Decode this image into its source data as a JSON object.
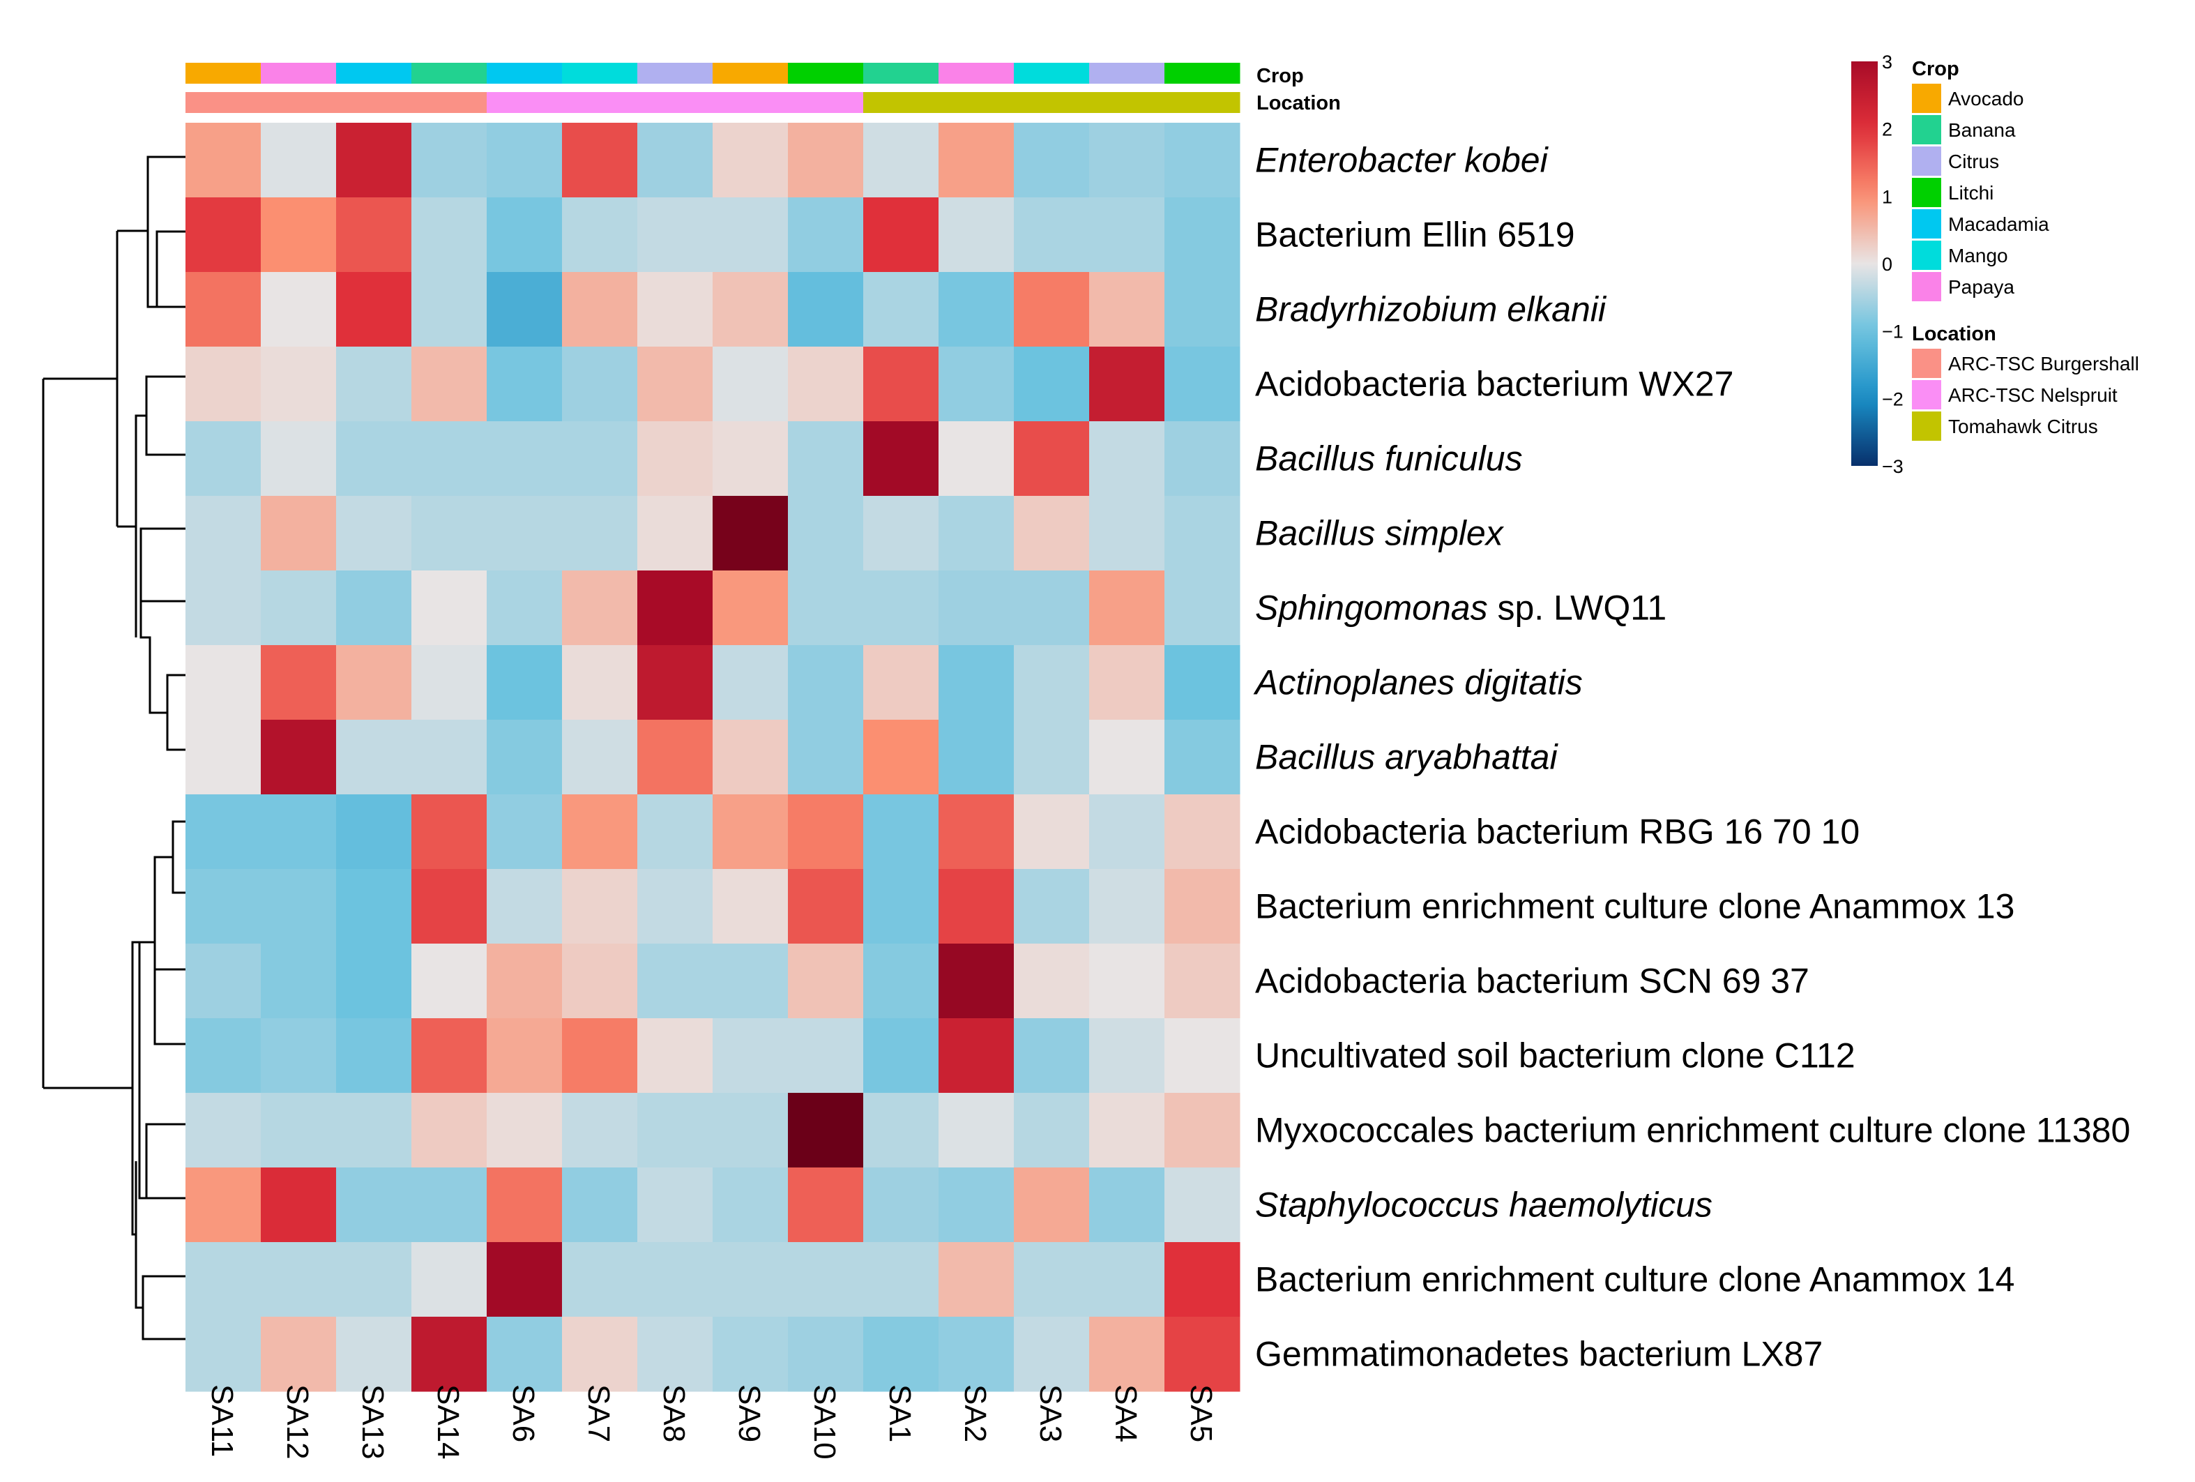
{
  "chart_data": {
    "type": "heatmap",
    "columns": [
      "SA11",
      "SA12",
      "SA13",
      "SA14",
      "SA6",
      "SA7",
      "SA8",
      "SA9",
      "SA10",
      "SA1",
      "SA2",
      "SA3",
      "SA4",
      "SA5"
    ],
    "rows": [
      {
        "name": "Enterobacter kobei",
        "italic": true
      },
      {
        "name": "Bacterium Ellin 6519",
        "italic": false
      },
      {
        "name": "Bradyrhizobium elkanii",
        "italic": true
      },
      {
        "name": "Acidobacteria bacterium WX27",
        "italic": false
      },
      {
        "name": "Bacillus funiculus",
        "italic": true
      },
      {
        "name": "Bacillus simplex",
        "italic": true
      },
      {
        "name": "Sphingomonas",
        "suffix": " sp. LWQ11",
        "italic": true
      },
      {
        "name": "Actinoplanes digitatis",
        "italic": true
      },
      {
        "name": "Bacillus aryabhattai",
        "italic": true
      },
      {
        "name": "Acidobacteria bacterium RBG 16 70 10",
        "italic": false
      },
      {
        "name": "Bacterium enrichment culture clone Anammox 13",
        "italic": false
      },
      {
        "name": "Acidobacteria bacterium SCN 69 37",
        "italic": false
      },
      {
        "name": "Uncultivated soil bacterium clone C112",
        "italic": false
      },
      {
        "name": "Myxococcales bacterium enrichment culture clone 11380",
        "italic": false
      },
      {
        "name": "Staphylococcus haemolyticus",
        "italic": true
      },
      {
        "name": "Bacterium enrichment culture clone Anammox 14",
        "italic": false
      },
      {
        "name": "Gemmatimonadetes bacterium LX87",
        "italic": false
      }
    ],
    "values": [
      [
        0.8,
        -0.1,
        2.4,
        -0.6,
        -0.7,
        1.7,
        -0.6,
        0.2,
        0.6,
        -0.2,
        0.8,
        -0.7,
        -0.6,
        -0.7
      ],
      [
        1.9,
        1.0,
        1.6,
        -0.4,
        -0.9,
        -0.4,
        -0.3,
        -0.3,
        -0.7,
        2.0,
        -0.2,
        -0.5,
        -0.5,
        -0.8
      ],
      [
        1.3,
        0.0,
        2.0,
        -0.4,
        -1.4,
        0.6,
        0.1,
        0.4,
        -1.1,
        -0.5,
        -0.9,
        1.2,
        0.5,
        -0.8
      ],
      [
        0.2,
        0.1,
        -0.4,
        0.5,
        -0.9,
        -0.6,
        0.5,
        -0.1,
        0.2,
        1.7,
        -0.7,
        -1.0,
        2.5,
        -0.9
      ],
      [
        -0.5,
        -0.1,
        -0.5,
        -0.5,
        -0.5,
        -0.5,
        0.2,
        0.1,
        -0.5,
        3.1,
        0.0,
        1.7,
        -0.3,
        -0.6
      ],
      [
        -0.3,
        0.6,
        -0.3,
        -0.4,
        -0.4,
        -0.4,
        0.1,
        3.8,
        -0.5,
        -0.3,
        -0.5,
        0.3,
        -0.3,
        -0.5
      ],
      [
        -0.3,
        -0.4,
        -0.7,
        0.0,
        -0.5,
        0.5,
        3.0,
        0.9,
        -0.5,
        -0.5,
        -0.6,
        -0.6,
        0.8,
        -0.5
      ],
      [
        0.0,
        1.5,
        0.6,
        -0.1,
        -1.0,
        0.1,
        2.6,
        -0.3,
        -0.7,
        0.3,
        -0.9,
        -0.4,
        0.3,
        -1.0
      ],
      [
        0.0,
        2.8,
        -0.3,
        -0.3,
        -0.8,
        -0.2,
        1.3,
        0.3,
        -0.7,
        1.0,
        -0.9,
        -0.4,
        0.0,
        -0.8
      ],
      [
        -0.9,
        -0.9,
        -1.1,
        1.6,
        -0.7,
        0.9,
        -0.4,
        0.8,
        1.2,
        -0.9,
        1.5,
        0.1,
        -0.3,
        0.3
      ],
      [
        -0.8,
        -0.8,
        -1.0,
        1.8,
        -0.3,
        0.2,
        -0.3,
        0.1,
        1.6,
        -0.9,
        1.8,
        -0.5,
        -0.2,
        0.5
      ],
      [
        -0.6,
        -0.8,
        -1.0,
        0.0,
        0.6,
        0.3,
        -0.5,
        -0.5,
        0.4,
        -0.8,
        3.3,
        0.1,
        0.0,
        0.3
      ],
      [
        -0.8,
        -0.7,
        -0.9,
        1.5,
        0.7,
        1.2,
        0.1,
        -0.3,
        -0.3,
        -0.9,
        2.4,
        -0.7,
        -0.2,
        0.0
      ],
      [
        -0.3,
        -0.4,
        -0.4,
        0.3,
        0.1,
        -0.3,
        -0.4,
        -0.4,
        4.0,
        -0.4,
        -0.1,
        -0.4,
        0.1,
        0.4
      ],
      [
        0.9,
        2.1,
        -0.7,
        -0.7,
        1.3,
        -0.7,
        -0.3,
        -0.5,
        1.5,
        -0.6,
        -0.7,
        0.7,
        -0.7,
        -0.2
      ],
      [
        -0.4,
        -0.4,
        -0.4,
        -0.1,
        3.1,
        -0.4,
        -0.4,
        -0.4,
        -0.4,
        -0.4,
        0.5,
        -0.4,
        -0.4,
        2.0
      ],
      [
        -0.4,
        0.5,
        -0.2,
        2.6,
        -0.7,
        0.2,
        -0.3,
        -0.5,
        -0.6,
        -0.8,
        -0.7,
        -0.3,
        0.6,
        1.8
      ]
    ],
    "crop_annotation": [
      "Avocado",
      "Papaya",
      "Macadamia",
      "Banana",
      "Macadamia",
      "Mango",
      "Citrus",
      "Avocado",
      "Litchi",
      "Banana",
      "Papaya",
      "Mango",
      "Citrus",
      "Litchi"
    ],
    "location_annotation": [
      "ARC-TSC Burgershall",
      "ARC-TSC Burgershall",
      "ARC-TSC Burgershall",
      "ARC-TSC Burgershall",
      "ARC-TSC Nelspruit",
      "ARC-TSC Nelspruit",
      "ARC-TSC Nelspruit",
      "ARC-TSC Nelspruit",
      "ARC-TSC Nelspruit",
      "Tomahawk Citrus",
      "Tomahawk Citrus",
      "Tomahawk Citrus",
      "Tomahawk Citrus",
      "Tomahawk Citrus"
    ],
    "annotation_labels": {
      "crop": "Crop",
      "location": "Location"
    },
    "color_scale": {
      "range": [
        -3,
        3
      ],
      "ticks": [
        3,
        2,
        1,
        0,
        -1,
        -2,
        -3
      ],
      "stops": [
        {
          "value": -3,
          "color": "#08306b"
        },
        {
          "value": -2,
          "color": "#1a8fc7"
        },
        {
          "value": -1,
          "color": "#6cc3df"
        },
        {
          "value": 0,
          "color": "#e8e4e4"
        },
        {
          "value": 1,
          "color": "#fb8f71"
        },
        {
          "value": 2,
          "color": "#e0303a"
        },
        {
          "value": 3,
          "color": "#a80b27"
        },
        {
          "value": 4,
          "color": "#6b0018"
        }
      ]
    },
    "legend": {
      "crop": {
        "title": "Crop",
        "items": [
          {
            "label": "Avocado",
            "color": "#f8a900"
          },
          {
            "label": "Banana",
            "color": "#22d290"
          },
          {
            "label": "Citrus",
            "color": "#b0b0f0"
          },
          {
            "label": "Litchi",
            "color": "#00d000"
          },
          {
            "label": "Macadamia",
            "color": "#00c8f0"
          },
          {
            "label": "Mango",
            "color": "#00dcdc"
          },
          {
            "label": "Papaya",
            "color": "#fa82e8"
          }
        ]
      },
      "location": {
        "title": "Location",
        "items": [
          {
            "label": "ARC-TSC Burgershall",
            "color": "#fa9186"
          },
          {
            "label": "ARC-TSC Nelspruit",
            "color": "#fa8ef5"
          },
          {
            "label": "Tomahawk Citrus",
            "color": "#c2c400"
          }
        ]
      }
    },
    "dendrogram": "hierarchical clustering of rows (left side)"
  }
}
